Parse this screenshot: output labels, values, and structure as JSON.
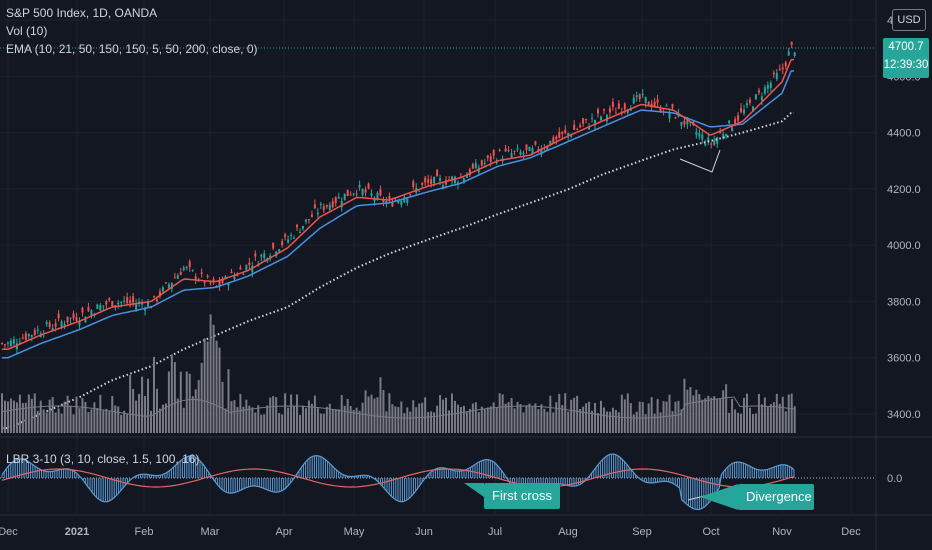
{
  "legend": {
    "symbol": "S&P 500 Index, 1D, OANDA",
    "vol": "Vol (10)",
    "ema": "EMA (10, 21, 50, 150, 150, 5, 50, 200, close, 0)",
    "lbr": "LBR 3-10 (3, 10, close, 1.5, 100, 16)"
  },
  "currency_label": "USD",
  "last_price": {
    "value": "4700.7",
    "countdown": "12:39:30"
  },
  "price_axis_labels": [
    "4800.0",
    "4600.0",
    "4400.0",
    "4200.0",
    "4000.0",
    "3800.0",
    "3600.0",
    "3400.0"
  ],
  "oscillator_axis_label": "0.0",
  "time_axis_labels": [
    "Dec",
    "2021",
    "Feb",
    "Mar",
    "Apr",
    "May",
    "Jun",
    "Jul",
    "Aug",
    "Sep",
    "Oct",
    "Nov",
    "Dec"
  ],
  "annotations": {
    "first_cross": "First cross",
    "divergence": "Divergence"
  },
  "colors": {
    "background": "#131722",
    "up": "#26a69a",
    "down": "#ef5350",
    "ema_fast": "#ef5350",
    "ema_mid": "#4a90e2",
    "ema_slow": "#d1d4dc",
    "volume": "#787b86",
    "osc_hist": "#5b9bd5",
    "osc_signal": "#e06666"
  },
  "chart_data": {
    "type": "candlestick",
    "title": "S&P 500 Index, 1D, OANDA",
    "ylim": [
      3300,
      4850
    ],
    "x_range": [
      "2020-12-01",
      "2021-12-31"
    ],
    "series": [
      {
        "name": "S&P 500 (approx. close)",
        "x": [
          "2020-12-01",
          "2020-12-15",
          "2021-01-01",
          "2021-01-15",
          "2021-02-01",
          "2021-02-15",
          "2021-03-01",
          "2021-03-15",
          "2021-04-01",
          "2021-04-15",
          "2021-05-01",
          "2021-05-15",
          "2021-06-01",
          "2021-06-15",
          "2021-07-01",
          "2021-07-15",
          "2021-08-01",
          "2021-08-15",
          "2021-09-01",
          "2021-09-15",
          "2021-10-01",
          "2021-10-15",
          "2021-11-01",
          "2021-11-05"
        ],
        "values": [
          3650,
          3700,
          3750,
          3800,
          3790,
          3920,
          3850,
          3930,
          4020,
          4130,
          4200,
          4150,
          4220,
          4240,
          4320,
          4330,
          4400,
          4460,
          4520,
          4470,
          4360,
          4470,
          4620,
          4700
        ]
      },
      {
        "name": "EMA 10",
        "values": [
          3630,
          3680,
          3730,
          3780,
          3800,
          3880,
          3870,
          3910,
          3990,
          4100,
          4170,
          4160,
          4210,
          4240,
          4300,
          4320,
          4390,
          4440,
          4500,
          4480,
          4390,
          4440,
          4580,
          4660
        ]
      },
      {
        "name": "EMA 21",
        "values": [
          3600,
          3650,
          3700,
          3750,
          3780,
          3840,
          3850,
          3890,
          3960,
          4060,
          4140,
          4150,
          4190,
          4220,
          4280,
          4310,
          4370,
          4420,
          4480,
          4470,
          4420,
          4430,
          4540,
          4620
        ]
      },
      {
        "name": "EMA 200",
        "values": [
          3350,
          3400,
          3460,
          3520,
          3570,
          3630,
          3680,
          3730,
          3780,
          3850,
          3920,
          3970,
          4020,
          4060,
          4110,
          4150,
          4200,
          4250,
          4300,
          4340,
          4370,
          4400,
          4440,
          4470
        ]
      }
    ],
    "oscillator": {
      "name": "LBR 3-10",
      "zero_line": 0.0
    }
  }
}
